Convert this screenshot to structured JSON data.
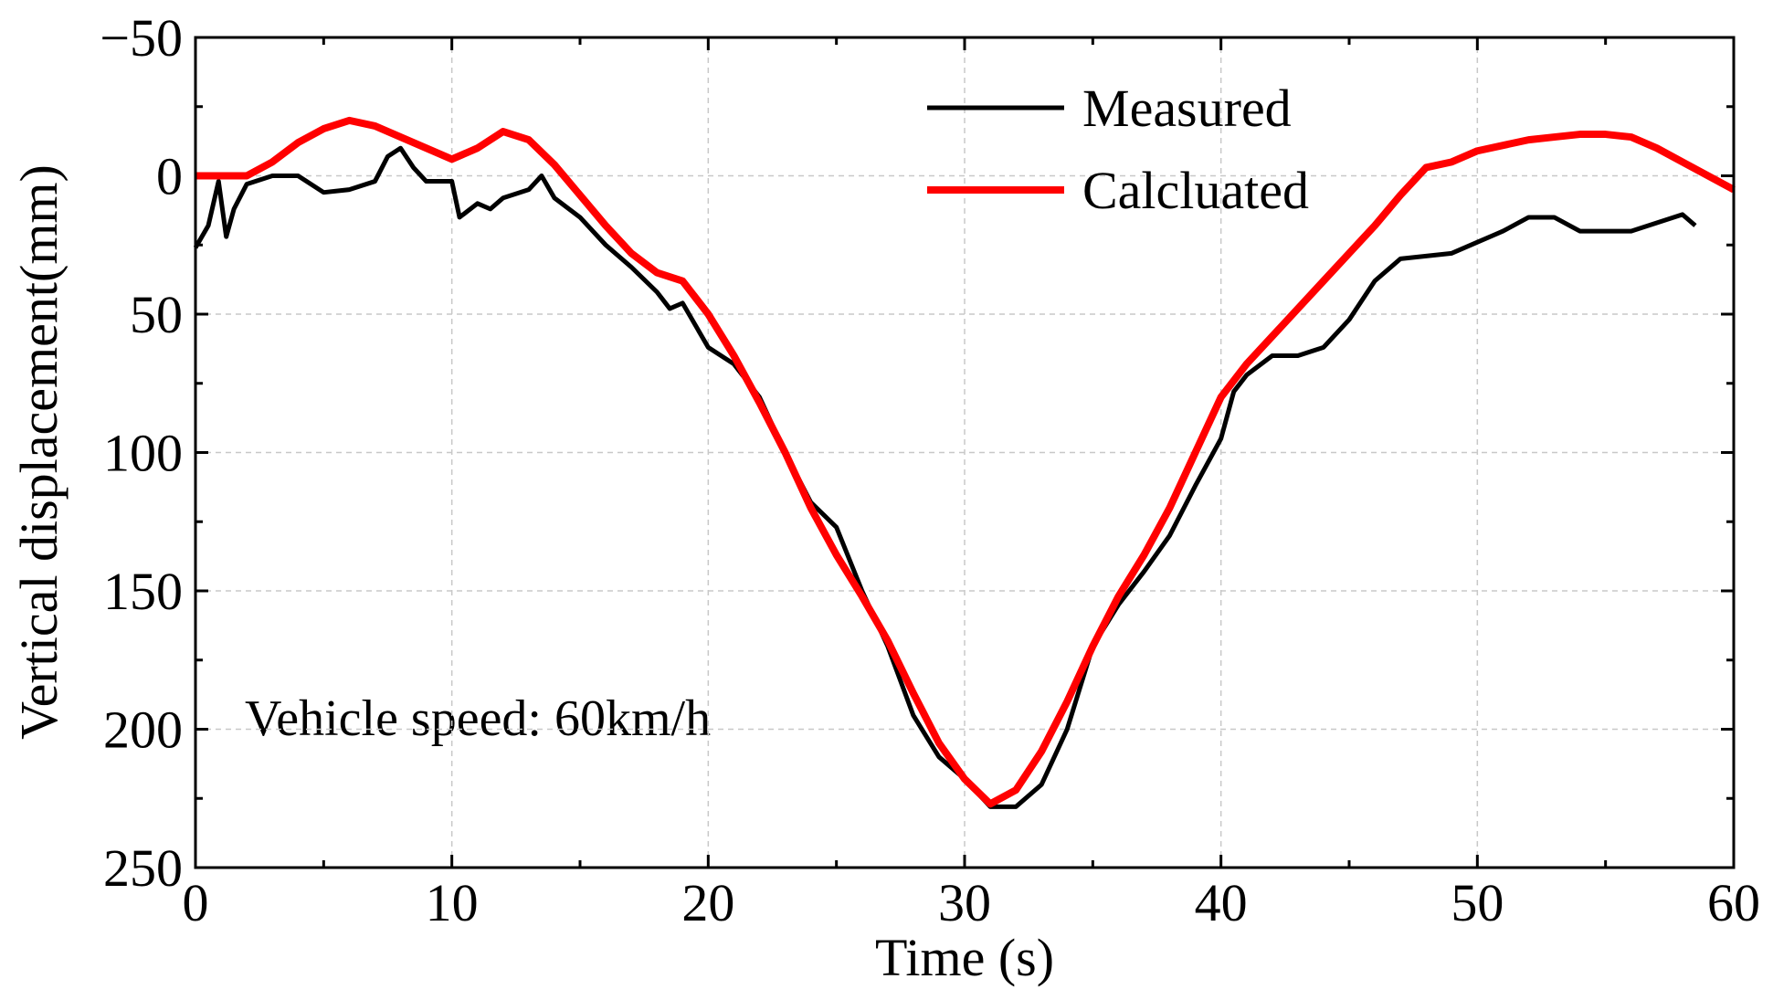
{
  "chart_data": {
    "type": "line",
    "xlabel": "Time (s)",
    "ylabel": "Vertical displacement(mm)",
    "annotation": "Vehicle speed: 60km/h",
    "xlim": [
      0,
      60
    ],
    "xticks": [
      0,
      10,
      20,
      30,
      40,
      50,
      60
    ],
    "ylim": [
      -50,
      250
    ],
    "yticks": [
      {
        "value": -50,
        "label": "−50"
      },
      0,
      50,
      100,
      150,
      200,
      250
    ],
    "y_inverted": true,
    "grid": true,
    "legend": "upper right",
    "series": [
      {
        "name": "Measured",
        "color": "#000000",
        "x": [
          0,
          0.5,
          0.9,
          1.2,
          1.5,
          2,
          3,
          4,
          5,
          6,
          7,
          7.5,
          8,
          8.5,
          9,
          10,
          10.3,
          11,
          11.5,
          12,
          13,
          13.5,
          14,
          15,
          16,
          17,
          18,
          18.5,
          19,
          20,
          21,
          22,
          23,
          24,
          25,
          26,
          27,
          28,
          29,
          30,
          31,
          32,
          33,
          34,
          35,
          36,
          37,
          38,
          39,
          40,
          40.5,
          41,
          42,
          43,
          44,
          45,
          46,
          47,
          48,
          49,
          50,
          51,
          52,
          53,
          54,
          55,
          56,
          57,
          58,
          58.5
        ],
        "values": [
          26,
          18,
          2,
          22,
          12,
          3,
          0,
          0,
          6,
          5,
          2,
          -7,
          -10,
          -3,
          2,
          2,
          15,
          10,
          12,
          8,
          5,
          0,
          8,
          15,
          25,
          33,
          42,
          48,
          46,
          62,
          68,
          80,
          100,
          118,
          127,
          150,
          170,
          195,
          210,
          218,
          228,
          228,
          220,
          200,
          170,
          155,
          143,
          130,
          112,
          95,
          78,
          72,
          65,
          65,
          62,
          52,
          38,
          30,
          29,
          28,
          24,
          20,
          15,
          15,
          20,
          20,
          20,
          17,
          14,
          18
        ]
      },
      {
        "name": "Calcluated",
        "color": "#ff0000",
        "x": [
          0,
          1,
          2,
          3,
          4,
          5,
          6,
          7,
          8,
          9,
          10,
          11,
          12,
          13,
          14,
          15,
          16,
          17,
          18,
          19,
          20,
          21,
          22,
          23,
          24,
          25,
          26,
          27,
          28,
          29,
          30,
          31,
          32,
          33,
          34,
          35,
          36,
          37,
          38,
          39,
          40,
          41,
          42,
          43,
          44,
          45,
          46,
          47,
          48,
          49,
          50,
          51,
          52,
          53,
          54,
          55,
          56,
          57,
          58,
          59,
          60
        ],
        "values": [
          0,
          0,
          0,
          -5,
          -12,
          -17,
          -20,
          -18,
          -14,
          -10,
          -6,
          -10,
          -16,
          -13,
          -4,
          7,
          18,
          28,
          35,
          38,
          50,
          65,
          82,
          100,
          120,
          137,
          152,
          168,
          187,
          205,
          218,
          227,
          222,
          208,
          190,
          170,
          152,
          137,
          120,
          100,
          80,
          68,
          58,
          48,
          38,
          28,
          18,
          7,
          -3,
          -5,
          -9,
          -11,
          -13,
          -14,
          -15,
          -15,
          -14,
          -10,
          -5,
          0,
          5
        ]
      }
    ]
  }
}
